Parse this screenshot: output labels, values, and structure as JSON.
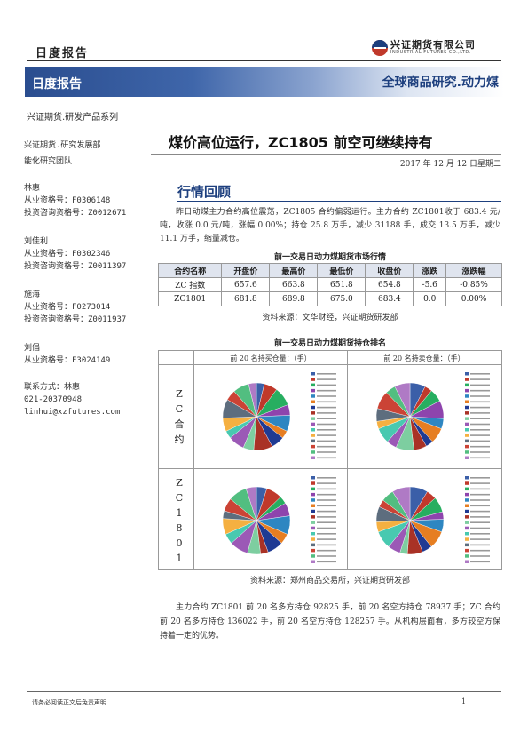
{
  "header": {
    "report_type": "日度报告",
    "company_cn": "兴证期货有限公司",
    "company_en": "INDUSTRIAL FUTURES CO.,LTD.",
    "banner_left": "日度报告",
    "banner_right": "全球商品研究.动力煤",
    "series": "兴证期货.研发产品系列"
  },
  "sidebar": {
    "org": "兴证期货.研究发展部",
    "team": "能化研究团队",
    "analysts": [
      {
        "name": "林惠",
        "license": "从业资格号：F0306148",
        "advisor": "投资咨询资格号：Z0012671"
      },
      {
        "name": "刘佳利",
        "license": "从业资格号：F0302346",
        "advisor": "投资咨询资格号：Z0011397"
      },
      {
        "name": "施海",
        "license": "从业资格号：F0273014",
        "advisor": "投资咨询资格号：Z0011937"
      },
      {
        "name": "刘倡",
        "license": "从业资格号：F3024149",
        "advisor": ""
      }
    ],
    "contact_label": "联系方式：林惠",
    "phone": "021-20370948",
    "email": "linhui@xzfutures.com"
  },
  "main": {
    "title": "煤价高位运行，ZC1805 前空可继续持有",
    "date": "2017 年 12 月 12 日星期二",
    "section_title": "行情回顾",
    "para1": "昨日动煤主力合约高位震荡，ZC1805 合约偏弱运行。主力合约 ZC1801收于 683.4 元/吨，收涨 0.0 元/吨，涨幅 0.00%；持仓 25.8 万手，减少 31188 手，成交 13.5 万手，减少 11.1 万手，缩量减仓。",
    "table_title": "前一交易日动力煤期货市场行情",
    "table": {
      "headers": [
        "合约名称",
        "开盘价",
        "最高价",
        "最低价",
        "收盘价",
        "涨跌",
        "涨跌幅"
      ],
      "rows": [
        [
          "ZC 指数",
          "657.6",
          "663.8",
          "651.8",
          "654.8",
          "-5.6",
          "-0.85%"
        ],
        [
          "ZC1801",
          "681.8",
          "689.8",
          "675.0",
          "683.4",
          "0.0",
          "0.00%"
        ]
      ]
    },
    "table_source": "资料来源：文华财经，兴证期货研发部",
    "rank_title": "前一交易日动力煤期货持仓排名",
    "rank_col_long": "前 20 名持买仓量：（手）",
    "rank_col_short": "前 20 名持卖仓量：（手）",
    "rank_row_zc": [
      "Z",
      "C",
      "合",
      "约"
    ],
    "rank_row_1801": [
      "Z",
      "C",
      "1",
      "8",
      "0",
      "1"
    ],
    "rank_source": "资料来源：郑州商品交易所，兴证期货研发部",
    "para2": "主力合约 ZC1801 前 20 名多方持仓 92825 手，前 20 名空方持仓 78937 手；ZC 合约前 20 名多方持仓 136022 手，前 20 名空方持仓 128257 手。从机构层面看，多方较空方保持着一定的优势。"
  },
  "footer": {
    "disclaimer": "请务必阅读正文后免责声明",
    "page": "1"
  },
  "colors": {
    "brand_blue": "#1d3f7e",
    "banner_blue": "#2a4d8f",
    "pie_palette": [
      "#3b5fa8",
      "#c0392b",
      "#27ae60",
      "#8e44ad",
      "#2e86c1",
      "#e67e22",
      "#1f3a93",
      "#a93226",
      "#7dcea0",
      "#9b59b6",
      "#48c9b0",
      "#f5b041",
      "#5d6d7e",
      "#cb4335",
      "#52be80",
      "#af7ac5",
      "#5499c7",
      "#dc7633",
      "#85929e",
      "#f1948a"
    ]
  }
}
